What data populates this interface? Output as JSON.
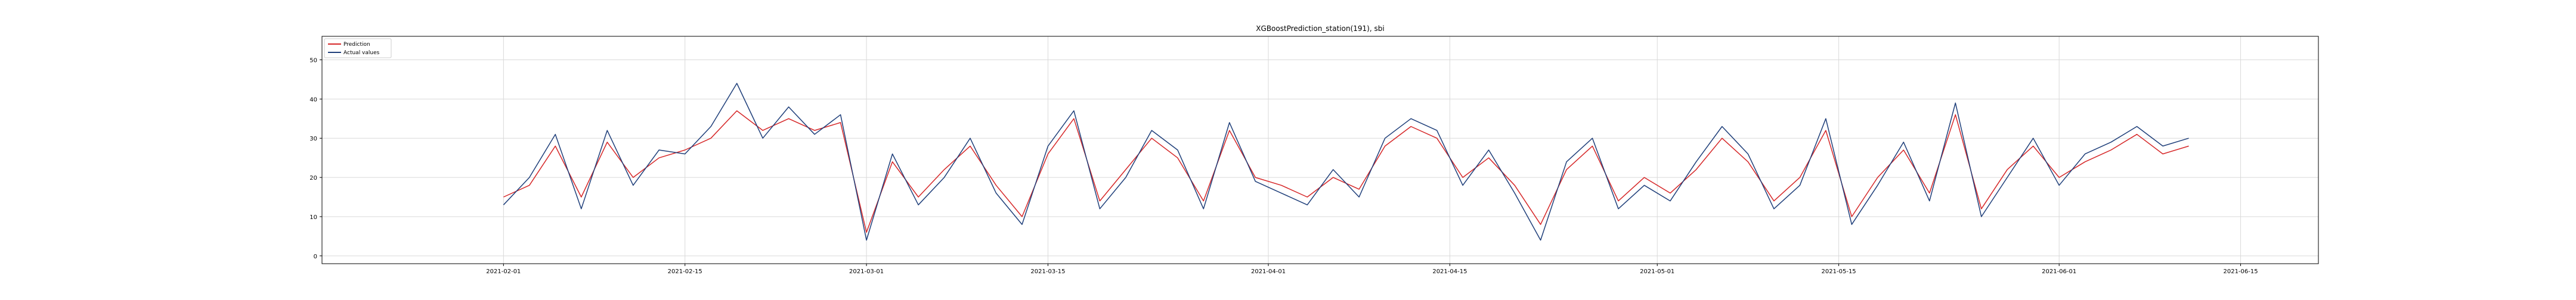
{
  "chart_data": {
    "type": "line",
    "title": "XGBoostPrediction_station(191), sbi",
    "xlabel": "",
    "ylabel": "",
    "x_range": [
      "2021-01-18",
      "2021-06-21"
    ],
    "ylim": [
      -2,
      56
    ],
    "x_ticks": [
      "2021-02-01",
      "2021-02-15",
      "2021-03-01",
      "2021-03-15",
      "2021-04-01",
      "2021-04-15",
      "2021-05-01",
      "2021-05-15",
      "2021-06-01",
      "2021-06-15"
    ],
    "y_ticks": [
      0,
      10,
      20,
      30,
      40,
      50
    ],
    "grid": true,
    "legend_position": "top-left",
    "series": [
      {
        "name": "Prediction",
        "color": "#d62728",
        "x": [
          "2021-02-01",
          "2021-02-03",
          "2021-02-05",
          "2021-02-07",
          "2021-02-09",
          "2021-02-11",
          "2021-02-13",
          "2021-02-15",
          "2021-02-17",
          "2021-02-19",
          "2021-02-21",
          "2021-02-23",
          "2021-02-25",
          "2021-02-27",
          "2021-03-01",
          "2021-03-03",
          "2021-03-05",
          "2021-03-07",
          "2021-03-09",
          "2021-03-11",
          "2021-03-13",
          "2021-03-15",
          "2021-03-17",
          "2021-03-19",
          "2021-03-21",
          "2021-03-23",
          "2021-03-25",
          "2021-03-27",
          "2021-03-29",
          "2021-03-31",
          "2021-04-02",
          "2021-04-04",
          "2021-04-06",
          "2021-04-08",
          "2021-04-10",
          "2021-04-12",
          "2021-04-14",
          "2021-04-16",
          "2021-04-18",
          "2021-04-20",
          "2021-04-22",
          "2021-04-24",
          "2021-04-26",
          "2021-04-28",
          "2021-04-30",
          "2021-05-02",
          "2021-05-04",
          "2021-05-06",
          "2021-05-08",
          "2021-05-10",
          "2021-05-12",
          "2021-05-14",
          "2021-05-16",
          "2021-05-18",
          "2021-05-20",
          "2021-05-22",
          "2021-05-24",
          "2021-05-26",
          "2021-05-28",
          "2021-05-30",
          "2021-06-01",
          "2021-06-03",
          "2021-06-05",
          "2021-06-07",
          "2021-06-09",
          "2021-06-11"
        ],
        "y": [
          15,
          18,
          28,
          15,
          29,
          20,
          25,
          27,
          30,
          37,
          32,
          35,
          32,
          34,
          6,
          24,
          15,
          22,
          28,
          18,
          10,
          26,
          35,
          14,
          22,
          30,
          25,
          14,
          32,
          20,
          18,
          15,
          20,
          17,
          28,
          33,
          30,
          20,
          25,
          18,
          8,
          22,
          28,
          14,
          20,
          16,
          22,
          30,
          24,
          14,
          20,
          32,
          10,
          20,
          27,
          16,
          36,
          12,
          22,
          28,
          20,
          24,
          27,
          31,
          26,
          28
        ]
      },
      {
        "name": "Actual values",
        "color": "#1f3f7a",
        "x": [
          "2021-02-01",
          "2021-02-03",
          "2021-02-05",
          "2021-02-07",
          "2021-02-09",
          "2021-02-11",
          "2021-02-13",
          "2021-02-15",
          "2021-02-17",
          "2021-02-19",
          "2021-02-21",
          "2021-02-23",
          "2021-02-25",
          "2021-02-27",
          "2021-03-01",
          "2021-03-03",
          "2021-03-05",
          "2021-03-07",
          "2021-03-09",
          "2021-03-11",
          "2021-03-13",
          "2021-03-15",
          "2021-03-17",
          "2021-03-19",
          "2021-03-21",
          "2021-03-23",
          "2021-03-25",
          "2021-03-27",
          "2021-03-29",
          "2021-03-31",
          "2021-04-02",
          "2021-04-04",
          "2021-04-06",
          "2021-04-08",
          "2021-04-10",
          "2021-04-12",
          "2021-04-14",
          "2021-04-16",
          "2021-04-18",
          "2021-04-20",
          "2021-04-22",
          "2021-04-24",
          "2021-04-26",
          "2021-04-28",
          "2021-04-30",
          "2021-05-02",
          "2021-05-04",
          "2021-05-06",
          "2021-05-08",
          "2021-05-10",
          "2021-05-12",
          "2021-05-14",
          "2021-05-16",
          "2021-05-18",
          "2021-05-20",
          "2021-05-22",
          "2021-05-24",
          "2021-05-26",
          "2021-05-28",
          "2021-05-30",
          "2021-06-01",
          "2021-06-03",
          "2021-06-05",
          "2021-06-07",
          "2021-06-09",
          "2021-06-11"
        ],
        "y": [
          13,
          20,
          31,
          12,
          32,
          18,
          27,
          26,
          33,
          44,
          30,
          38,
          31,
          36,
          4,
          26,
          13,
          20,
          30,
          16,
          8,
          28,
          37,
          12,
          20,
          32,
          27,
          12,
          34,
          19,
          16,
          13,
          22,
          15,
          30,
          35,
          32,
          18,
          27,
          16,
          4,
          24,
          30,
          12,
          18,
          14,
          24,
          33,
          26,
          12,
          18,
          35,
          8,
          18,
          29,
          14,
          39,
          10,
          20,
          30,
          18,
          26,
          29,
          33,
          28,
          30
        ]
      }
    ]
  }
}
